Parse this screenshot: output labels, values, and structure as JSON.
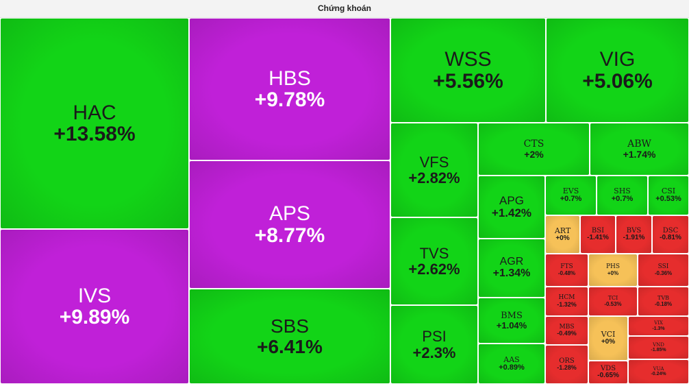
{
  "title": "Chứng khoán",
  "colors": {
    "strong_up": "#c020d8",
    "up": "#12d417",
    "flat": "#f6c158",
    "down": "#e62d2d"
  },
  "chart_data": {
    "type": "treemap",
    "title": "Chứng khoán",
    "items": [
      {
        "symbol": "HAC",
        "change": "+13.58%",
        "value": 13.58,
        "color": "up"
      },
      {
        "symbol": "IVS",
        "change": "+9.89%",
        "value": 9.89,
        "color": "strong_up"
      },
      {
        "symbol": "HBS",
        "change": "+9.78%",
        "value": 9.78,
        "color": "strong_up"
      },
      {
        "symbol": "APS",
        "change": "+8.77%",
        "value": 8.77,
        "color": "strong_up"
      },
      {
        "symbol": "SBS",
        "change": "+6.41%",
        "value": 6.41,
        "color": "up"
      },
      {
        "symbol": "WSS",
        "change": "+5.56%",
        "value": 5.56,
        "color": "up"
      },
      {
        "symbol": "VIG",
        "change": "+5.06%",
        "value": 5.06,
        "color": "up"
      },
      {
        "symbol": "VFS",
        "change": "+2.82%",
        "value": 2.82,
        "color": "up"
      },
      {
        "symbol": "CTS",
        "change": "+2%",
        "value": 2,
        "color": "up"
      },
      {
        "symbol": "ABW",
        "change": "+1.74%",
        "value": 1.74,
        "color": "up"
      },
      {
        "symbol": "TVS",
        "change": "+2.62%",
        "value": 2.62,
        "color": "up"
      },
      {
        "symbol": "APG",
        "change": "+1.42%",
        "value": 1.42,
        "color": "up"
      },
      {
        "symbol": "EVS",
        "change": "+0.7%",
        "value": 0.7,
        "color": "up"
      },
      {
        "symbol": "SHS",
        "change": "+0.7%",
        "value": 0.7,
        "color": "up"
      },
      {
        "symbol": "CSI",
        "change": "+0.53%",
        "value": 0.53,
        "color": "up"
      },
      {
        "symbol": "PSI",
        "change": "+2.3%",
        "value": 2.3,
        "color": "up"
      },
      {
        "symbol": "AGR",
        "change": "+1.34%",
        "value": 1.34,
        "color": "up"
      },
      {
        "symbol": "BMS",
        "change": "+1.04%",
        "value": 1.04,
        "color": "up"
      },
      {
        "symbol": "AAS",
        "change": "+0.89%",
        "value": 0.89,
        "color": "up"
      },
      {
        "symbol": "ART",
        "change": "+0%",
        "value": 0,
        "color": "flat"
      },
      {
        "symbol": "BSI",
        "change": "-1.41%",
        "value": -1.41,
        "color": "down"
      },
      {
        "symbol": "BVS",
        "change": "-1.91%",
        "value": -1.91,
        "color": "down"
      },
      {
        "symbol": "DSC",
        "change": "-0.81%",
        "value": -0.81,
        "color": "down"
      },
      {
        "symbol": "FTS",
        "change": "-0.48%",
        "value": -0.48,
        "color": "down"
      },
      {
        "symbol": "PHS",
        "change": "+0%",
        "value": 0,
        "color": "flat"
      },
      {
        "symbol": "SSI",
        "change": "-0.36%",
        "value": -0.36,
        "color": "down"
      },
      {
        "symbol": "HCM",
        "change": "-1.32%",
        "value": -1.32,
        "color": "down"
      },
      {
        "symbol": "TCI",
        "change": "-0.53%",
        "value": -0.53,
        "color": "down"
      },
      {
        "symbol": "TVB",
        "change": "-0.18%",
        "value": -0.18,
        "color": "down"
      },
      {
        "symbol": "MBS",
        "change": "-0.49%",
        "value": -0.49,
        "color": "down"
      },
      {
        "symbol": "VCI",
        "change": "+0%",
        "value": 0,
        "color": "flat"
      },
      {
        "symbol": "VIX",
        "change": "-1.3%",
        "value": -1.3,
        "color": "down"
      },
      {
        "symbol": "VND",
        "change": "-1.85%",
        "value": -1.85,
        "color": "down"
      },
      {
        "symbol": "ORS",
        "change": "-1.28%",
        "value": -1.28,
        "color": "down"
      },
      {
        "symbol": "VDS",
        "change": "-0.65%",
        "value": -0.65,
        "color": "down"
      },
      {
        "symbol": "VUA",
        "change": "-0.24%",
        "value": -0.24,
        "color": "down"
      }
    ]
  }
}
